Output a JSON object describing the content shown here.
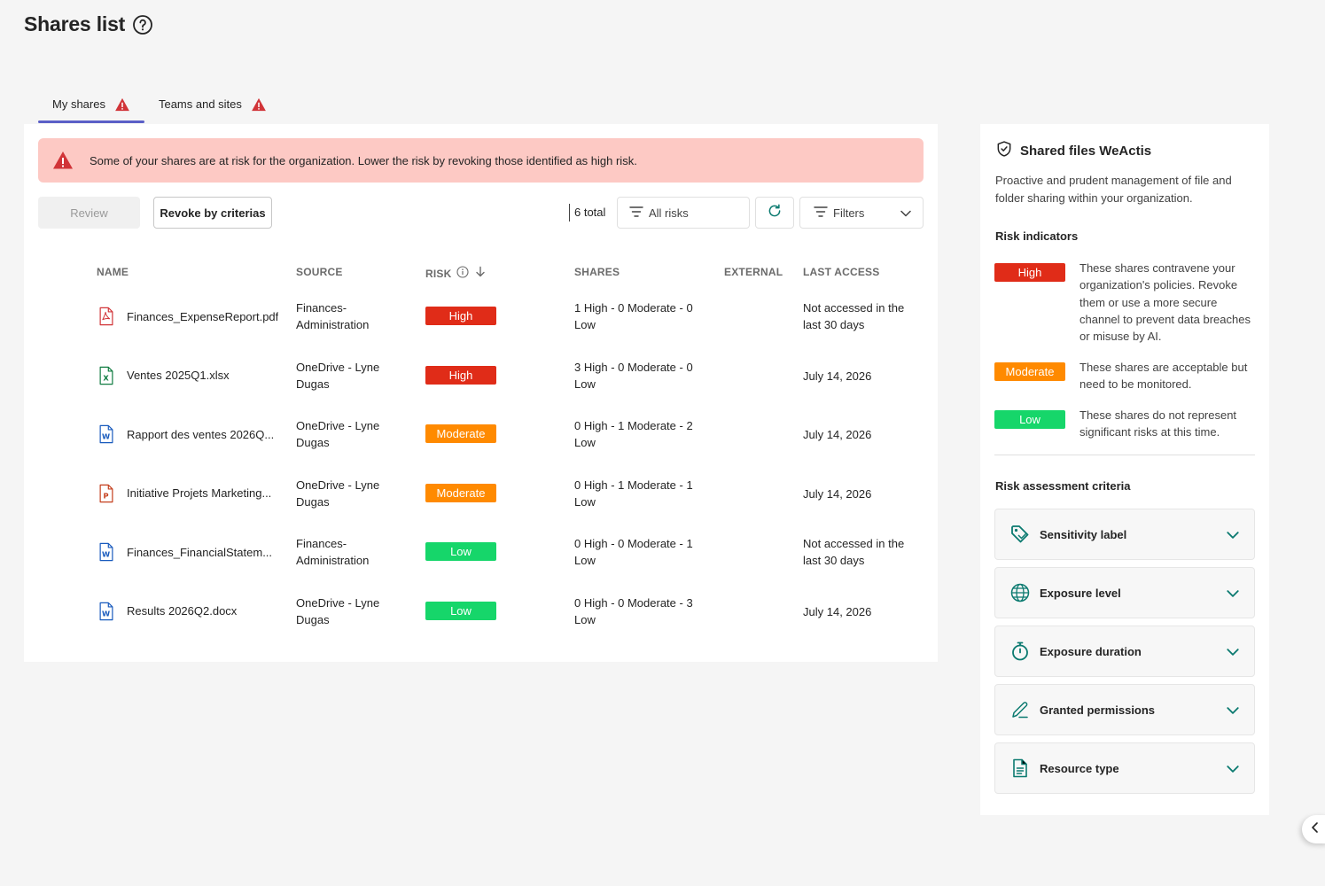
{
  "page": {
    "title": "Shares list"
  },
  "tabs": [
    {
      "label": "My shares",
      "active": true,
      "warning": true
    },
    {
      "label": "Teams and sites",
      "active": false,
      "warning": true
    }
  ],
  "alert": {
    "message": "Some of your shares are at risk for the organization. Lower the risk by revoking those identified as high risk."
  },
  "toolbar": {
    "review_label": "Review",
    "revoke_label": "Revoke by criterias",
    "total_label": "6 total",
    "risk_filter_label": "All risks",
    "filters_label": "Filters"
  },
  "table": {
    "headers": {
      "name": "NAME",
      "source": "SOURCE",
      "risk": "RISK",
      "shares": "SHARES",
      "external": "EXTERNAL",
      "last_access": "LAST ACCESS"
    },
    "rows": [
      {
        "name": "Finances_ExpenseReport.pdf",
        "type": "pdf",
        "source": "Finances-Administration",
        "risk": "High",
        "shares": "1 High - 0 Moderate - 0 Low",
        "external": "",
        "last_access": "Not accessed in the last 30 days"
      },
      {
        "name": "Ventes 2025Q1.xlsx",
        "type": "xlsx",
        "source": "OneDrive - Lyne Dugas",
        "risk": "High",
        "shares": "3 High - 0 Moderate - 0 Low",
        "external": "",
        "last_access": "July 14, 2026"
      },
      {
        "name": "Rapport des ventes 2026Q...",
        "type": "docx",
        "source": "OneDrive - Lyne Dugas",
        "risk": "Moderate",
        "shares": "0 High - 1 Moderate - 2 Low",
        "external": "",
        "last_access": "July 14, 2026"
      },
      {
        "name": "Initiative Projets Marketing...",
        "type": "pptx",
        "source": "OneDrive - Lyne Dugas",
        "risk": "Moderate",
        "shares": "0 High - 1 Moderate - 1 Low",
        "external": "",
        "last_access": "July 14, 2026"
      },
      {
        "name": "Finances_FinancialStatem...",
        "type": "docx",
        "source": "Finances-Administration",
        "risk": "Low",
        "shares": "0 High - 0 Moderate - 1 Low",
        "external": "",
        "last_access": "Not accessed in the last 30 days"
      },
      {
        "name": "Results 2026Q2.docx",
        "type": "docx",
        "source": "OneDrive - Lyne Dugas",
        "risk": "Low",
        "shares": "0 High - 0 Moderate - 3 Low",
        "external": "",
        "last_access": "July 14, 2026"
      }
    ]
  },
  "colors": {
    "high": "#e02c18",
    "moderate": "#ff8a00",
    "low": "#16d66a",
    "accent": "#5b5fc7",
    "teal": "#0b7a70"
  },
  "side_panel": {
    "title": "Shared files WeActis",
    "description": "Proactive and prudent management of file and folder sharing within your organization.",
    "indicators_heading": "Risk indicators",
    "indicators": [
      {
        "label": "High",
        "text": "These shares contravene your organization's policies. Revoke them or use a more secure channel to prevent data breaches or misuse by AI."
      },
      {
        "label": "Moderate",
        "text": "These shares are acceptable but need to be monitored."
      },
      {
        "label": "Low",
        "text": "These shares do not represent significant risks at this time."
      }
    ],
    "criteria_heading": "Risk assessment criteria",
    "criteria": [
      {
        "label": "Sensitivity label",
        "icon": "tag-icon"
      },
      {
        "label": "Exposure level",
        "icon": "globe-icon"
      },
      {
        "label": "Exposure duration",
        "icon": "timer-icon"
      },
      {
        "label": "Granted permissions",
        "icon": "pen-icon"
      },
      {
        "label": "Resource type",
        "icon": "document-icon"
      }
    ]
  }
}
